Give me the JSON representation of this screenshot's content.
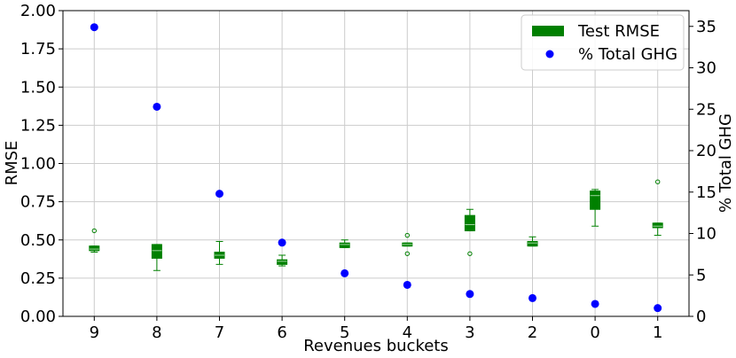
{
  "chart_data": {
    "type": "box",
    "xlabel": "Revenues buckets",
    "ylabel": "RMSE",
    "y2label": "% Total GHG",
    "categories": [
      "9",
      "8",
      "7",
      "6",
      "5",
      "4",
      "3",
      "2",
      "0",
      "1"
    ],
    "ylim": [
      0,
      2.0
    ],
    "y2lim": [
      0,
      36.9
    ],
    "yticks": [
      "0.00",
      "0.25",
      "0.50",
      "0.75",
      "1.00",
      "1.25",
      "1.50",
      "1.75",
      "2.00"
    ],
    "y2ticks": [
      "0",
      "5",
      "10",
      "15",
      "20",
      "25",
      "30",
      "35"
    ],
    "grid": true,
    "legend_position": "top-right",
    "colors": {
      "box": "#008000",
      "scatter": "#0000ff"
    },
    "series": [
      {
        "name": "Test RMSE",
        "kind": "box",
        "axis": "left",
        "boxes": [
          {
            "whislo": 0.42,
            "q1": 0.43,
            "med": 0.44,
            "q3": 0.46,
            "whishi": 0.46,
            "fliers": [
              0.56
            ]
          },
          {
            "whislo": 0.3,
            "q1": 0.38,
            "med": 0.43,
            "q3": 0.47,
            "whishi": 0.47,
            "fliers": []
          },
          {
            "whislo": 0.34,
            "q1": 0.38,
            "med": 0.4,
            "q3": 0.42,
            "whishi": 0.49,
            "fliers": []
          },
          {
            "whislo": 0.33,
            "q1": 0.34,
            "med": 0.36,
            "q3": 0.37,
            "whishi": 0.4,
            "fliers": []
          },
          {
            "whislo": 0.45,
            "q1": 0.45,
            "med": 0.47,
            "q3": 0.48,
            "whishi": 0.5,
            "fliers": []
          },
          {
            "whislo": 0.46,
            "q1": 0.46,
            "med": 0.47,
            "q3": 0.48,
            "whishi": 0.48,
            "fliers": [
              0.41,
              0.53
            ]
          },
          {
            "whislo": 0.56,
            "q1": 0.56,
            "med": 0.6,
            "q3": 0.66,
            "whishi": 0.7,
            "fliers": [
              0.41
            ]
          },
          {
            "whislo": 0.46,
            "q1": 0.46,
            "med": 0.48,
            "q3": 0.49,
            "whishi": 0.52,
            "fliers": []
          },
          {
            "whislo": 0.59,
            "q1": 0.7,
            "med": 0.79,
            "q3": 0.82,
            "whishi": 0.83,
            "fliers": []
          },
          {
            "whislo": 0.53,
            "q1": 0.58,
            "med": 0.59,
            "q3": 0.61,
            "whishi": 0.61,
            "fliers": [
              0.88
            ]
          }
        ]
      },
      {
        "name": "% Total GHG",
        "kind": "scatter",
        "axis": "right",
        "values": [
          34.9,
          25.3,
          14.8,
          8.9,
          5.2,
          3.8,
          2.7,
          2.2,
          1.5,
          1.0
        ]
      }
    ]
  }
}
